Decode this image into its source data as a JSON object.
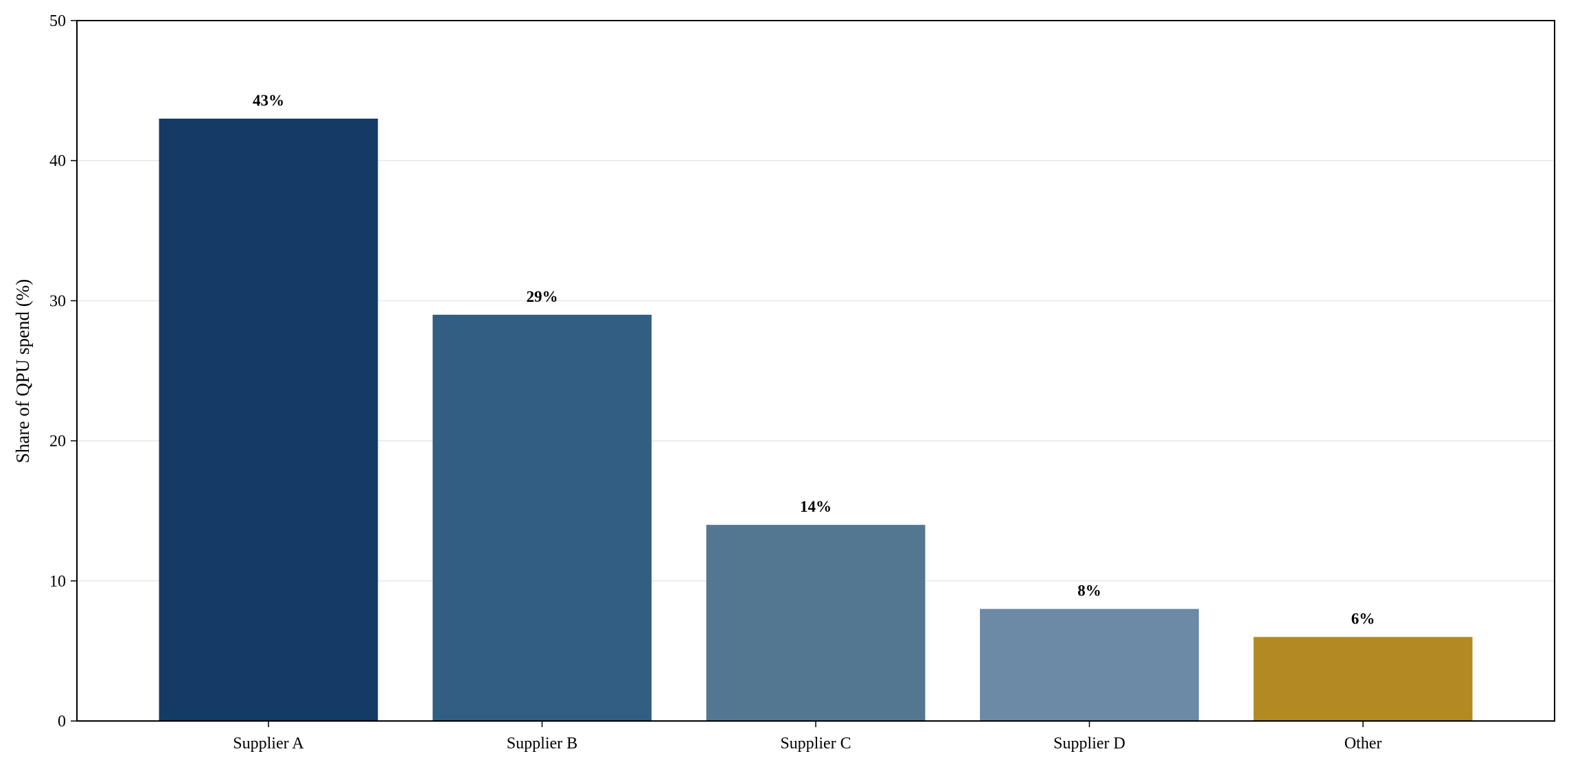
{
  "chart_data": {
    "type": "bar",
    "categories": [
      "Supplier A",
      "Supplier B",
      "Supplier C",
      "Supplier D",
      "Other"
    ],
    "values": [
      43,
      29,
      14,
      8,
      6
    ],
    "data_labels": [
      "43%",
      "29%",
      "14%",
      "8%",
      "6%"
    ],
    "colors": [
      "#143a66",
      "#335e84",
      "#537791",
      "#6c8aa6",
      "#b38a22"
    ],
    "title": "",
    "xlabel": "",
    "ylabel": "Share of QPU spend (%)",
    "ylim": [
      0,
      50
    ],
    "yticks": [
      0,
      10,
      20,
      30,
      40,
      50
    ],
    "ytick_labels": [
      "0",
      "10",
      "20",
      "30",
      "40",
      "50"
    ],
    "grid": "horizontal",
    "grid_color": "#e6e6e6",
    "legend": "none"
  }
}
